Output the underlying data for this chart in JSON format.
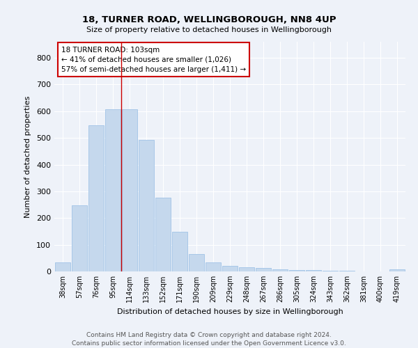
{
  "title1": "18, TURNER ROAD, WELLINGBOROUGH, NN8 4UP",
  "title2": "Size of property relative to detached houses in Wellingborough",
  "xlabel": "Distribution of detached houses by size in Wellingborough",
  "ylabel": "Number of detached properties",
  "categories": [
    "38sqm",
    "57sqm",
    "76sqm",
    "95sqm",
    "114sqm",
    "133sqm",
    "152sqm",
    "171sqm",
    "190sqm",
    "209sqm",
    "229sqm",
    "248sqm",
    "267sqm",
    "286sqm",
    "305sqm",
    "324sqm",
    "343sqm",
    "362sqm",
    "381sqm",
    "400sqm",
    "419sqm"
  ],
  "values": [
    35,
    247,
    547,
    607,
    607,
    493,
    277,
    148,
    65,
    33,
    20,
    15,
    12,
    7,
    5,
    4,
    3,
    2,
    1,
    1,
    7
  ],
  "bar_color": "#c5d8ed",
  "bar_edge_color": "#a8c8e8",
  "vline_color": "#cc0000",
  "vline_pos": 3.5,
  "annotation_text": "18 TURNER ROAD: 103sqm\n← 41% of detached houses are smaller (1,026)\n57% of semi-detached houses are larger (1,411) →",
  "annotation_box_color": "#ffffff",
  "annotation_box_edge": "#cc0000",
  "footer1": "Contains HM Land Registry data © Crown copyright and database right 2024.",
  "footer2": "Contains public sector information licensed under the Open Government Licence v3.0.",
  "bg_color": "#eef2f9",
  "ylim": [
    0,
    860
  ],
  "yticks": [
    0,
    100,
    200,
    300,
    400,
    500,
    600,
    700,
    800
  ]
}
